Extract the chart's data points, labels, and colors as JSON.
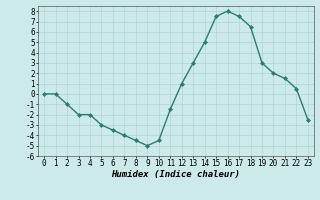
{
  "x": [
    0,
    1,
    2,
    3,
    4,
    5,
    6,
    7,
    8,
    9,
    10,
    11,
    12,
    13,
    14,
    15,
    16,
    17,
    18,
    19,
    20,
    21,
    22,
    23
  ],
  "y": [
    0,
    0,
    -1,
    -2,
    -2,
    -3,
    -3.5,
    -4,
    -4.5,
    -5,
    -4.5,
    -1.5,
    1,
    3,
    5,
    7.5,
    8,
    7.5,
    6.5,
    3,
    2,
    1.5,
    0.5,
    -2.5
  ],
  "line_color": "#2d7d6e",
  "marker": "D",
  "marker_size": 2,
  "bg_color": "#cceaea",
  "grid_color": "#b0d4d4",
  "xlabel": "Humidex (Indice chaleur)",
  "ylim": [
    -6,
    8.5
  ],
  "xlim": [
    -0.5,
    23.5
  ],
  "yticks": [
    8,
    7,
    6,
    5,
    4,
    3,
    2,
    1,
    0,
    -1,
    -2,
    -3,
    -4,
    -5,
    -6
  ],
  "xticks": [
    0,
    1,
    2,
    3,
    4,
    5,
    6,
    7,
    8,
    9,
    10,
    11,
    12,
    13,
    14,
    15,
    16,
    17,
    18,
    19,
    20,
    21,
    22,
    23
  ],
  "xlabel_fontsize": 6.5,
  "tick_fontsize": 5.5,
  "line_width": 1.0
}
